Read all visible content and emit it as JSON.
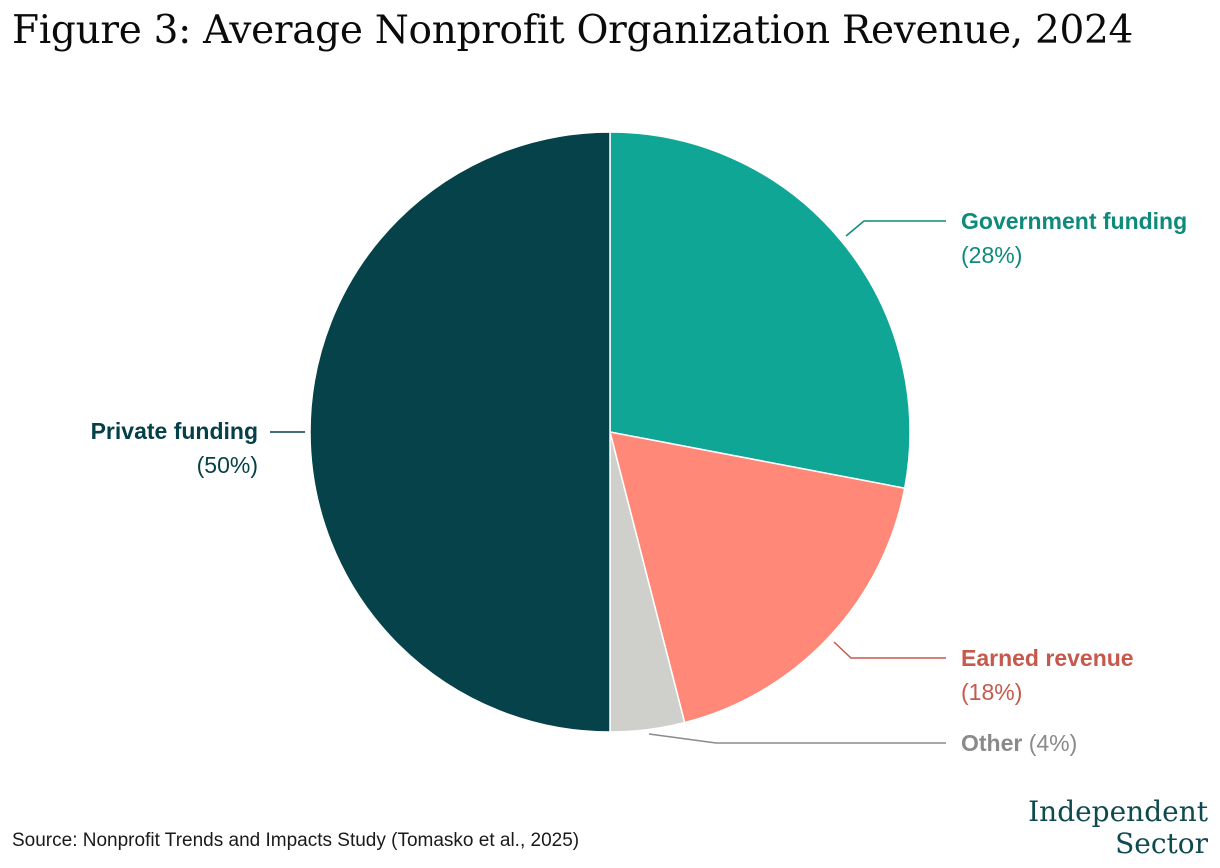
{
  "title": "Figure 3: Average Nonprofit Organization Revenue, 2024",
  "source": "Source: Nonprofit Trends and Impacts Study (Tomasko et al., 2025)",
  "logo": {
    "line1": "Independent",
    "line2": "Sector"
  },
  "colors": {
    "private": "#05424a",
    "government": "#0fa695",
    "earned": "#ff8878",
    "other": "#cfcfcc",
    "private_text": "#053f47",
    "government_text": "#0e8a7b",
    "earned_text": "#c6594b",
    "other_text": "#8a8a8a"
  },
  "chart_data": {
    "type": "pie",
    "title": "Figure 3: Average Nonprofit Organization Revenue, 2024",
    "start_angle_deg": 0,
    "direction": "clockwise",
    "slices": [
      {
        "label": "Government funding",
        "value": 28,
        "pct_label": "(28%)"
      },
      {
        "label": "Earned revenue",
        "value": 18,
        "pct_label": "(18%)"
      },
      {
        "label": "Other",
        "value": 4,
        "pct_label": "(4%)"
      },
      {
        "label": "Private funding",
        "value": 50,
        "pct_label": "(50%)"
      }
    ]
  }
}
